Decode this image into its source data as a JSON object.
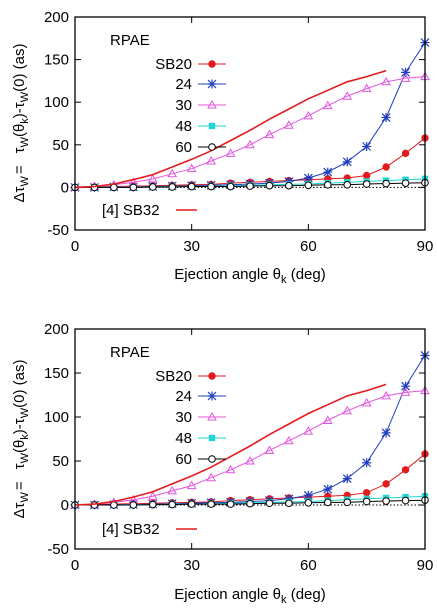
{
  "colors": {
    "SB20": "#e41a1c",
    "24": "#1f3fbf",
    "30": "#e455e0",
    "48": "#22d5d5",
    "60": "#000000",
    "ref": "#e41a1c"
  },
  "chart_data": [
    {
      "type": "line",
      "xlabel": "Ejection angle θ",
      "xlabel_sub": "k",
      "xlabel_tail": " (deg)",
      "ylabel_left": "Δτ",
      "ylabel_left_sub": "W",
      "ylabel_eq": "=",
      "ylabel_right": "τ",
      "ylabel_right_sub1": "W",
      "ylabel_right_mid": "(θ",
      "ylabel_right_sub2": "k",
      "ylabel_right_tail": ")-τ",
      "ylabel_right_sub3": "W",
      "ylabel_right_end": "(0) (as)",
      "xlim": [
        0,
        90
      ],
      "ylim": [
        -50,
        200
      ],
      "xticks": [
        "0",
        "30",
        "60",
        "90"
      ],
      "yticks": [
        "-50",
        "0",
        "50",
        "100",
        "150",
        "200"
      ],
      "legend_title": "RPAE",
      "legend_ref_label": "[4] SB32",
      "legend": "top-left",
      "series": [
        {
          "name": "SB20",
          "marker": "circle",
          "x": [
            0,
            5,
            10,
            15,
            20,
            25,
            30,
            35,
            40,
            45,
            50,
            55,
            60,
            65,
            70,
            75,
            80,
            85,
            90
          ],
          "values": [
            0,
            0.5,
            1,
            1.5,
            2,
            2.5,
            3,
            3.5,
            5,
            6,
            7,
            8,
            9,
            10,
            11,
            14,
            24,
            40,
            58
          ]
        },
        {
          "name": "24",
          "marker": "star",
          "x": [
            0,
            5,
            10,
            15,
            20,
            25,
            30,
            35,
            40,
            45,
            50,
            55,
            60,
            65,
            70,
            75,
            80,
            85,
            90
          ],
          "values": [
            0,
            0,
            0.5,
            0.5,
            1,
            1.5,
            2,
            2.5,
            3,
            4,
            5,
            7,
            11,
            18,
            30,
            48,
            82,
            135,
            170
          ]
        },
        {
          "name": "30",
          "marker": "triangle",
          "x": [
            0,
            5,
            10,
            15,
            20,
            25,
            30,
            35,
            40,
            45,
            50,
            55,
            60,
            65,
            70,
            75,
            80,
            85,
            90
          ],
          "values": [
            0,
            1,
            3,
            6,
            10,
            16,
            22,
            31,
            40,
            50,
            62,
            73,
            84,
            96,
            107,
            116,
            124,
            128,
            130
          ]
        },
        {
          "name": "48",
          "marker": "square",
          "x": [
            0,
            5,
            10,
            15,
            20,
            25,
            30,
            35,
            40,
            45,
            50,
            55,
            60,
            65,
            70,
            75,
            80,
            85,
            90
          ],
          "values": [
            0,
            0,
            0,
            0.5,
            0.5,
            1,
            1,
            1.5,
            2,
            2.5,
            3,
            3.5,
            4,
            5,
            6,
            7,
            8,
            9,
            10
          ]
        },
        {
          "name": "60",
          "marker": "opencircle",
          "x": [
            0,
            5,
            10,
            15,
            20,
            25,
            30,
            35,
            40,
            45,
            50,
            55,
            60,
            65,
            70,
            75,
            80,
            85,
            90
          ],
          "values": [
            0,
            0,
            0,
            0,
            0.5,
            0.5,
            1,
            1,
            1,
            1.5,
            2,
            2,
            2.5,
            3,
            3,
            4,
            4.5,
            5,
            5.5
          ]
        },
        {
          "name": "[4] SB32",
          "marker": "none",
          "x": [
            0,
            5,
            10,
            15,
            20,
            25,
            30,
            35,
            40,
            45,
            50,
            55,
            60,
            65,
            70,
            75,
            80
          ],
          "values": [
            0,
            1,
            4,
            9,
            15,
            24,
            33,
            43,
            55,
            67,
            80,
            92,
            104,
            114,
            124,
            130,
            137
          ]
        }
      ]
    },
    {
      "type": "line",
      "xlabel": "Ejection angle θ",
      "xlabel_sub": "k",
      "xlabel_tail": " (deg)",
      "ylabel_left": "Δτ",
      "ylabel_left_sub": "W",
      "ylabel_eq": "=",
      "ylabel_right": "τ",
      "ylabel_right_sub1": "W",
      "ylabel_right_mid": "(θ",
      "ylabel_right_sub2": "k",
      "ylabel_right_tail": ")-τ",
      "ylabel_right_sub3": "W",
      "ylabel_right_end": "(0) (as)",
      "xlim": [
        0,
        90
      ],
      "ylim": [
        -50,
        200
      ],
      "xticks": [
        "0",
        "30",
        "60",
        "90"
      ],
      "yticks": [
        "-50",
        "0",
        "50",
        "100",
        "150",
        "200"
      ],
      "legend_title": "RPAE",
      "legend_ref_label": "[4] SB32",
      "legend": "top-left",
      "series": [
        {
          "name": "SB20",
          "marker": "circle",
          "x": [
            0,
            5,
            10,
            15,
            20,
            25,
            30,
            35,
            40,
            45,
            50,
            55,
            60,
            65,
            70,
            75,
            80,
            85,
            90
          ],
          "values": [
            0,
            0.5,
            1,
            1.5,
            2,
            2.5,
            3,
            3.5,
            5,
            6,
            7,
            8,
            9,
            10,
            11,
            14,
            24,
            40,
            58
          ]
        },
        {
          "name": "24",
          "marker": "star",
          "x": [
            0,
            5,
            10,
            15,
            20,
            25,
            30,
            35,
            40,
            45,
            50,
            55,
            60,
            65,
            70,
            75,
            80,
            85,
            90
          ],
          "values": [
            0,
            0,
            0.5,
            0.5,
            1,
            1.5,
            2,
            2.5,
            3,
            4,
            5,
            7,
            11,
            18,
            30,
            48,
            82,
            135,
            170
          ]
        },
        {
          "name": "30",
          "marker": "triangle",
          "x": [
            0,
            5,
            10,
            15,
            20,
            25,
            30,
            35,
            40,
            45,
            50,
            55,
            60,
            65,
            70,
            75,
            80,
            85,
            90
          ],
          "values": [
            0,
            1,
            3,
            6,
            10,
            16,
            22,
            31,
            40,
            50,
            62,
            73,
            84,
            96,
            107,
            116,
            124,
            128,
            130
          ]
        },
        {
          "name": "48",
          "marker": "square",
          "x": [
            0,
            5,
            10,
            15,
            20,
            25,
            30,
            35,
            40,
            45,
            50,
            55,
            60,
            65,
            70,
            75,
            80,
            85,
            90
          ],
          "values": [
            0,
            0,
            0,
            0.5,
            0.5,
            1,
            1,
            1.5,
            2,
            2.5,
            3,
            3.5,
            4,
            5,
            6,
            7,
            8,
            9,
            10
          ]
        },
        {
          "name": "60",
          "marker": "opencircle",
          "x": [
            0,
            5,
            10,
            15,
            20,
            25,
            30,
            35,
            40,
            45,
            50,
            55,
            60,
            65,
            70,
            75,
            80,
            85,
            90
          ],
          "values": [
            0,
            0,
            0,
            0,
            0.5,
            0.5,
            1,
            1,
            1,
            1.5,
            2,
            2,
            2.5,
            3,
            3,
            4,
            4.5,
            5,
            5.5
          ]
        },
        {
          "name": "[4] SB32",
          "marker": "none",
          "x": [
            0,
            5,
            10,
            15,
            20,
            25,
            30,
            35,
            40,
            45,
            50,
            55,
            60,
            65,
            70,
            75,
            80
          ],
          "values": [
            0,
            1,
            4,
            9,
            15,
            24,
            33,
            43,
            55,
            67,
            80,
            92,
            104,
            114,
            124,
            130,
            137
          ]
        }
      ]
    }
  ]
}
